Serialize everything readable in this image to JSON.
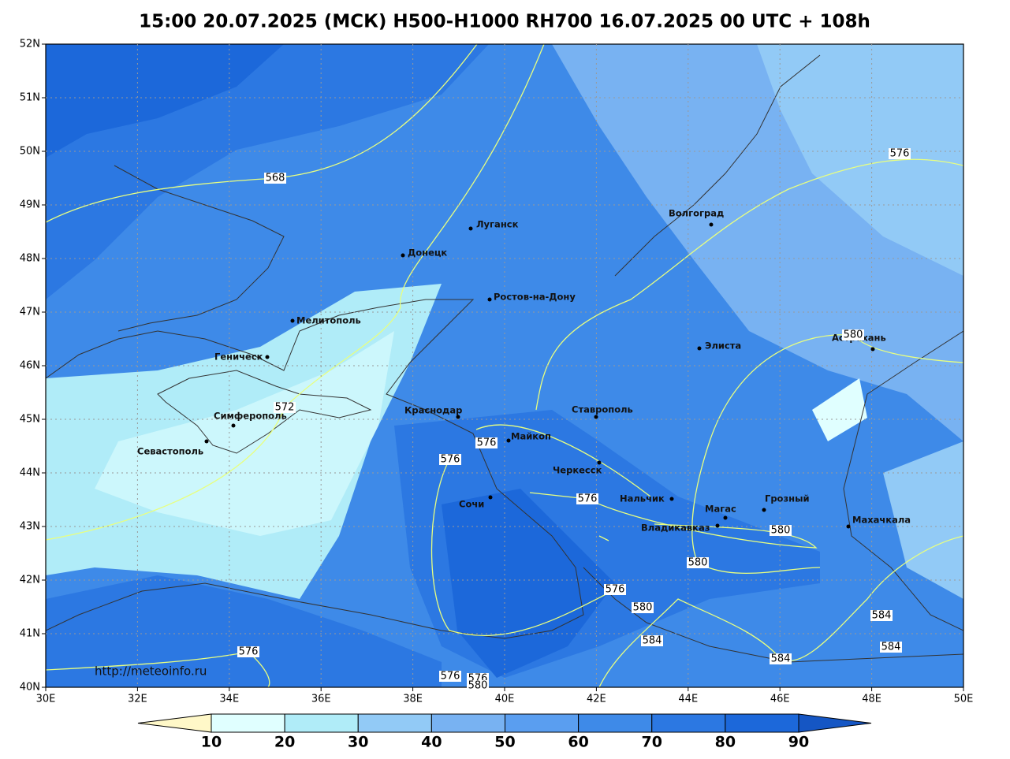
{
  "title": "15:00 20.07.2025 (МСК) H500-H1000 RH700 16.07.2025 00 UTC + 108h",
  "map": {
    "xlim": [
      30,
      50
    ],
    "ylim": [
      40,
      52
    ],
    "xticks": [
      {
        "value": 30,
        "label": "30E"
      },
      {
        "value": 32,
        "label": "32E"
      },
      {
        "value": 34,
        "label": "34E"
      },
      {
        "value": 36,
        "label": "36E"
      },
      {
        "value": 38,
        "label": "38E"
      },
      {
        "value": 40,
        "label": "40E"
      },
      {
        "value": 42,
        "label": "42E"
      },
      {
        "value": 44,
        "label": "44E"
      },
      {
        "value": 46,
        "label": "46E"
      },
      {
        "value": 48,
        "label": "48E"
      },
      {
        "value": 50,
        "label": "50E"
      }
    ],
    "yticks": [
      {
        "value": 40,
        "label": "40N"
      },
      {
        "value": 41,
        "label": "41N"
      },
      {
        "value": 42,
        "label": "42N"
      },
      {
        "value": 43,
        "label": "43N"
      },
      {
        "value": 44,
        "label": "44N"
      },
      {
        "value": 45,
        "label": "45N"
      },
      {
        "value": 46,
        "label": "46N"
      },
      {
        "value": 47,
        "label": "47N"
      },
      {
        "value": 48,
        "label": "48N"
      },
      {
        "value": 49,
        "label": "49N"
      },
      {
        "value": 50,
        "label": "50N"
      },
      {
        "value": 51,
        "label": "51N"
      },
      {
        "value": 52,
        "label": "52N"
      }
    ],
    "grid": true,
    "cities": [
      "Луганск",
      "Донецк",
      "Ростов-на-Дону",
      "Волгоград",
      "Мелитополь",
      "Элиста",
      "Астрахань",
      "Геническ",
      "Краснодар",
      "Ставрополь",
      "Симферополь",
      "Майкоп",
      "Севастополь",
      "Черкесск",
      "Сочи",
      "Нальчик",
      "Магас",
      "Грозный",
      "Владикавказ",
      "Махачкала"
    ],
    "contour_labels": [
      568,
      572,
      576,
      576,
      576,
      576,
      576,
      576,
      576,
      580,
      580,
      580,
      580,
      580,
      576,
      584,
      584,
      584,
      584
    ],
    "credit": "http://meteoinfo.ru"
  },
  "colorbar": {
    "ticks": [
      10,
      20,
      30,
      40,
      50,
      60,
      70,
      80,
      90
    ],
    "colors": [
      "#fff8c8",
      "#e0ffff",
      "#b0ecf8",
      "#92caf6",
      "#78b2f2",
      "#5a9ef0",
      "#3e8ae8",
      "#2c78e2",
      "#1c68da",
      "#1556c4"
    ]
  }
}
